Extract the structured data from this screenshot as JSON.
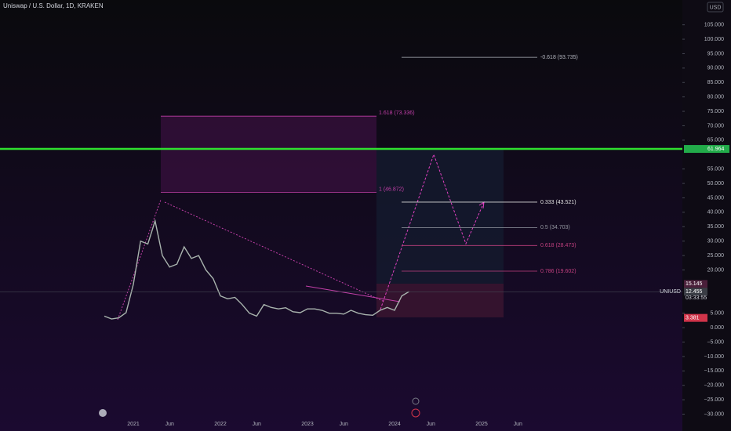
{
  "chart_data": {
    "type": "line",
    "title": "Uniswap / U.S. Dollar, 1D, KRAKEN",
    "currency_button": "USD",
    "categories": [
      null,
      null,
      null,
      null,
      "2021",
      null,
      null,
      null,
      null,
      "Jun",
      null,
      null,
      null,
      null,
      null,
      null,
      "2022",
      null,
      null,
      null,
      null,
      "Jun",
      null,
      null,
      null,
      null,
      null,
      null,
      "2023",
      null,
      null,
      null,
      null,
      "Jun",
      null,
      null,
      null,
      null,
      null,
      null,
      "2024",
      null,
      null,
      null,
      null,
      "Jun",
      null,
      null,
      null,
      null,
      null,
      null,
      "2025",
      null,
      null,
      null,
      null,
      "Jun"
    ],
    "series": [
      {
        "name": "UNIUSD",
        "color": "#a9b4ae",
        "values": [
          4,
          3,
          3.4,
          5.2,
          15,
          30,
          29,
          37,
          25,
          21,
          22,
          28,
          24,
          25,
          20,
          17,
          11,
          10,
          10.5,
          8,
          5,
          4,
          8,
          7,
          6.5,
          6.9,
          5.5,
          5.2,
          6.5,
          6.5,
          6,
          5,
          5,
          4.7,
          6,
          5,
          4.5,
          4.3,
          6,
          7,
          6,
          11,
          12.5,
          null,
          null,
          null,
          null,
          null,
          null,
          null,
          null,
          null,
          null,
          null,
          null,
          null,
          null,
          null
        ]
      }
    ],
    "ylim": [
      -30.4,
      113.6
    ],
    "yticks": [
      {
        "value": 105,
        "label": "105.000"
      },
      {
        "value": 100,
        "label": "100.000"
      },
      {
        "value": 95,
        "label": "95.000"
      },
      {
        "value": 90,
        "label": "90.000"
      },
      {
        "value": 85,
        "label": "85.000"
      },
      {
        "value": 80,
        "label": "80.000"
      },
      {
        "value": 75,
        "label": "75.000"
      },
      {
        "value": 70,
        "label": "70.000"
      },
      {
        "value": 65,
        "label": "65.000"
      },
      {
        "value": 55,
        "label": "55.000"
      },
      {
        "value": 50,
        "label": "50.000"
      },
      {
        "value": 45,
        "label": "45.000"
      },
      {
        "value": 40,
        "label": "40.000"
      },
      {
        "value": 35,
        "label": "35.000"
      },
      {
        "value": 30,
        "label": "30.000"
      },
      {
        "value": 25,
        "label": "25.000"
      },
      {
        "value": 20,
        "label": "20.000"
      },
      {
        "value": 5,
        "label": "5.000"
      },
      {
        "value": 0,
        "label": "0.000"
      },
      {
        "value": -5,
        "label": "−5.000"
      },
      {
        "value": -10,
        "label": "−10.000"
      },
      {
        "value": -15,
        "label": "−15.000"
      },
      {
        "value": -20,
        "label": "−20.000"
      },
      {
        "value": -25,
        "label": "−25.000"
      },
      {
        "value": -30,
        "label": "−30.000"
      }
    ],
    "fib_levels": [
      {
        "label": "-0.618 (93.735)",
        "value": 93.735,
        "color": "#b2b5be"
      },
      {
        "label": "1.618 (73.336)",
        "value": 73.336,
        "color": "#c23fa8"
      },
      {
        "label": "1 (46.872)",
        "value": 46.872,
        "color": "#c23fa8"
      },
      {
        "label": "0.333 (43.521)",
        "value": 43.521,
        "color": "#e0e0e0"
      },
      {
        "label": "0.5 (34.703)",
        "value": 34.703,
        "color": "#9598a1"
      },
      {
        "label": "0.618 (28.473)",
        "value": 28.473,
        "color": "#c2407f"
      },
      {
        "label": "0.786 (19.602)",
        "value": 19.602,
        "color": "#c2407f"
      }
    ],
    "resistance": {
      "value": 61.964,
      "color": "#2fe02f"
    },
    "price_badges": [
      {
        "value": 15.145,
        "color": "#4a1f3a"
      },
      {
        "value": 12.455,
        "color": "#3a3d45"
      },
      {
        "value": 3.381,
        "color": "#d0344a"
      }
    ],
    "symbol_label": "UNIUSD",
    "countdown": "03:33:55"
  }
}
